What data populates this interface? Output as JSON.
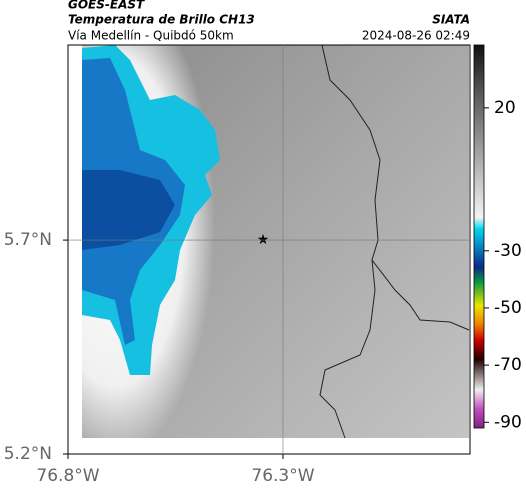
{
  "header": {
    "source": "GOES-EAST",
    "title": "Temperatura de Brillo CH13",
    "subtitle": "Vía Medellín - Quibdó 50km",
    "agency": "SIATA",
    "timestamp": "2024-08-26 02:49"
  },
  "map": {
    "xlim": [
      -76.8,
      -75.865
    ],
    "ylim": [
      5.2,
      6.156
    ],
    "xticks": [
      {
        "value": -76.8,
        "label": "76.8°W"
      },
      {
        "value": -76.3,
        "label": "76.3°W"
      }
    ],
    "yticks": [
      {
        "value": 5.7,
        "label": "5.7°N"
      },
      {
        "value": 5.2,
        "label": "5.2°N"
      }
    ]
  },
  "colorbar": {
    "lim": [
      42,
      -92
    ],
    "ticks": [
      20,
      -30,
      -50,
      -70,
      -90
    ]
  }
}
